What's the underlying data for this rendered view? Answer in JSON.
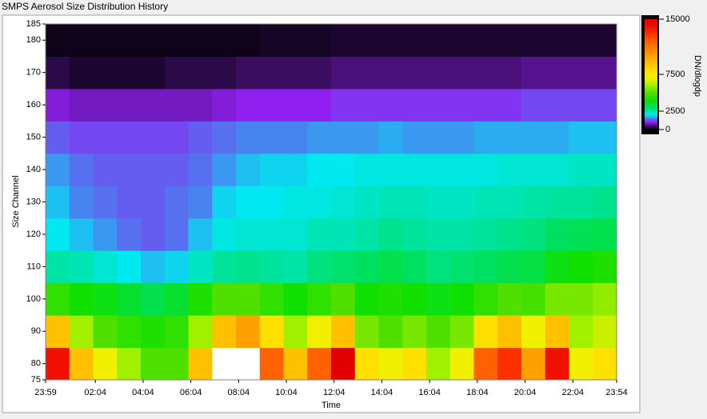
{
  "chart_data": {
    "type": "heatmap",
    "title": "SMPS Aerosol Size Distribution History",
    "xlabel": "Time",
    "ylabel": "Size Channel",
    "xticks": [
      "23:59",
      "02:04",
      "04:04",
      "06:04",
      "08:04",
      "10:04",
      "12:04",
      "14:04",
      "16:04",
      "18:04",
      "20:04",
      "22:04",
      "23:54"
    ],
    "ylim": [
      75,
      185
    ],
    "yticks": [
      75,
      80,
      90,
      100,
      110,
      120,
      130,
      140,
      150,
      160,
      170,
      180,
      185
    ],
    "ybins": [
      75,
      85,
      95,
      105,
      115,
      125,
      135,
      145,
      155,
      165,
      175,
      185
    ],
    "z": [
      [
        14000,
        9000,
        7000,
        6000,
        5000,
        5000,
        9000,
        16000,
        16000,
        12000,
        9000,
        12000,
        15000,
        8000,
        7000,
        8000,
        6000,
        7000,
        12000,
        13000,
        10000,
        14000,
        7000,
        8000
      ],
      [
        9000,
        6000,
        5000,
        4500,
        4200,
        4500,
        6000,
        9000,
        10000,
        8000,
        6000,
        7000,
        9000,
        5500,
        5000,
        5500,
        5000,
        5500,
        8000,
        9000,
        7000,
        9000,
        6000,
        6500
      ],
      [
        4500,
        4000,
        3800,
        3500,
        3200,
        3500,
        4200,
        5000,
        5000,
        4500,
        4000,
        4500,
        5000,
        4000,
        4200,
        4000,
        3800,
        4000,
        4500,
        5000,
        4800,
        5500,
        5500,
        5800
      ],
      [
        2500,
        2400,
        2200,
        2000,
        1800,
        1900,
        2300,
        2600,
        2700,
        2600,
        2500,
        2800,
        2900,
        3000,
        3200,
        3000,
        2800,
        2900,
        3000,
        3200,
        3300,
        3800,
        4000,
        4200
      ],
      [
        2000,
        1800,
        1600,
        1400,
        1300,
        1400,
        1800,
        2100,
        2200,
        2200,
        2200,
        2400,
        2400,
        2500,
        2700,
        2600,
        2500,
        2500,
        2600,
        2700,
        2800,
        3000,
        3100,
        3200
      ],
      [
        1800,
        1500,
        1400,
        1300,
        1300,
        1400,
        1500,
        1900,
        2000,
        2000,
        2100,
        2100,
        2200,
        2300,
        2400,
        2400,
        2300,
        2300,
        2400,
        2400,
        2500,
        2600,
        2600,
        2700
      ],
      [
        1600,
        1400,
        1300,
        1300,
        1300,
        1300,
        1400,
        1600,
        1800,
        1900,
        1900,
        2000,
        2000,
        2100,
        2100,
        2100,
        2100,
        2100,
        2100,
        2200,
        2200,
        2200,
        2300,
        2300
      ],
      [
        1300,
        1200,
        1200,
        1200,
        1200,
        1200,
        1300,
        1400,
        1500,
        1500,
        1500,
        1600,
        1600,
        1600,
        1700,
        1600,
        1600,
        1600,
        1700,
        1700,
        1700,
        1700,
        1800,
        1800
      ],
      [
        900,
        800,
        800,
        800,
        800,
        800,
        800,
        900,
        1000,
        1000,
        1000,
        1000,
        1100,
        1100,
        1100,
        1100,
        1100,
        1100,
        1100,
        1100,
        1200,
        1200,
        1200,
        1200
      ],
      [
        300,
        200,
        200,
        200,
        200,
        300,
        300,
        300,
        400,
        400,
        400,
        400,
        500,
        500,
        500,
        500,
        500,
        500,
        500,
        500,
        600,
        600,
        600,
        600
      ],
      [
        100,
        100,
        100,
        100,
        100,
        100,
        100,
        100,
        100,
        150,
        150,
        150,
        200,
        200,
        200,
        200,
        200,
        200,
        200,
        200,
        200,
        200,
        200,
        200
      ]
    ],
    "colorbar": {
      "label": "DN/dlogdp",
      "zlim": [
        0,
        15000
      ],
      "ticks": [
        0,
        2500,
        7500,
        15000
      ],
      "colors": [
        "#000000",
        "#9020f0",
        "#00e8f0",
        "#00e060",
        "#10e000",
        "#50e000",
        "#a0f000",
        "#f0f000",
        "#ffe000",
        "#ffc000",
        "#ffa000",
        "#ff8000",
        "#ff6000",
        "#ff3000",
        "#f01000",
        "#e00000"
      ],
      "over_color": "#ffffff"
    }
  }
}
